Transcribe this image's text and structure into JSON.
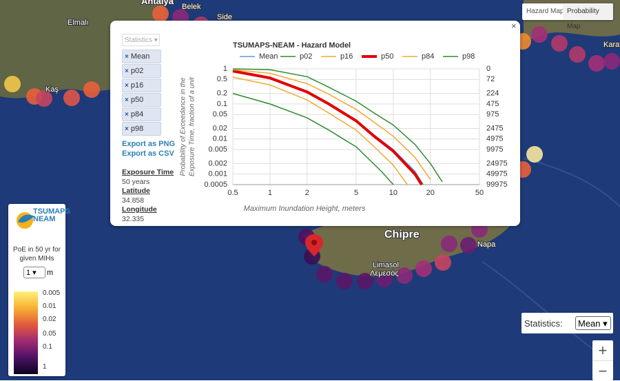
{
  "map": {
    "buttons": [
      "Hazard Map",
      "Probability Map"
    ],
    "labels": [
      "Antalya",
      "Belek",
      "Side",
      "Elmalı",
      "Kaş",
      "Karat",
      "Chipre",
      "Limasol",
      "Λεμεσός",
      "Napa"
    ],
    "statistics_label": "Statistics:",
    "statistics_value": "Mean",
    "zoom_in": "+",
    "zoom_out": "−"
  },
  "legend_panel": {
    "logo": "TSUMAPS NEAM",
    "caption": "PoE in 50 yr for given MIHs",
    "mih_value": "1",
    "mih_unit": "m",
    "scale": [
      "0.005",
      "0.01",
      "0.02",
      "0.05",
      "0.1",
      "1"
    ]
  },
  "popup": {
    "close": "×",
    "select": "Statistics",
    "chips": [
      "Mean",
      "p02",
      "p16",
      "p50",
      "p84",
      "p98"
    ],
    "exports": [
      "Export as PNG",
      "Export as CSV"
    ],
    "info": [
      [
        "Exposure Time",
        "50 years"
      ],
      [
        "Latitude",
        "34.858"
      ],
      [
        "Longitude",
        "32.335"
      ]
    ]
  },
  "chart_data": {
    "type": "line",
    "title": "TSUMAPS-NEAM - Hazard Model",
    "xlabel": "Maximum Inundation Height, meters",
    "ylabel": [
      "Probability of Exceedance in the",
      "Exposure Time, fraction of a unit"
    ],
    "xscale": "log",
    "yscale": "log",
    "grid": true,
    "xlim": [
      0.5,
      50
    ],
    "xticks": [
      0.5,
      1,
      2,
      5,
      10,
      20,
      50
    ],
    "ylim": [
      0.0005,
      1
    ],
    "yticks": [
      1,
      0.5,
      0.2,
      0.1,
      0.05,
      0.02,
      0.01,
      0.005,
      0.002,
      0.001,
      0.0005
    ],
    "y2ticks": [
      0,
      72,
      224,
      475,
      975,
      2475,
      4975,
      9975,
      24975,
      49975,
      99975
    ],
    "series": [
      {
        "name": "Mean",
        "color": "#5b9bd5",
        "linewidth": 1.5,
        "x": [
          0.5,
          1,
          2,
          3,
          5,
          7,
          10,
          15,
          17.5
        ],
        "values": [
          0.85,
          0.54,
          0.22,
          0.1,
          0.034,
          0.013,
          0.005,
          0.0012,
          0.0005
        ]
      },
      {
        "name": "p02",
        "color": "#2e8b2e",
        "linewidth": 1.5,
        "x": [
          0.5,
          1,
          2,
          3,
          5,
          8,
          10
        ],
        "values": [
          0.2,
          0.1,
          0.04,
          0.018,
          0.006,
          0.0012,
          0.0005
        ]
      },
      {
        "name": "p16",
        "color": "#f0a830",
        "linewidth": 1.5,
        "x": [
          0.5,
          1,
          2,
          3,
          5,
          7,
          10,
          13
        ],
        "values": [
          0.58,
          0.35,
          0.13,
          0.055,
          0.018,
          0.006,
          0.0018,
          0.0005
        ]
      },
      {
        "name": "p50",
        "color": "#e00000",
        "linewidth": 4,
        "x": [
          0.5,
          1,
          2,
          3,
          5,
          7,
          10,
          15,
          17
        ],
        "values": [
          0.87,
          0.55,
          0.22,
          0.1,
          0.033,
          0.012,
          0.0045,
          0.001,
          0.0005
        ]
      },
      {
        "name": "p84",
        "color": "#f0a830",
        "linewidth": 1.5,
        "x": [
          0.5,
          1,
          2,
          3,
          5,
          7,
          10,
          15,
          20
        ],
        "values": [
          0.95,
          0.75,
          0.38,
          0.19,
          0.07,
          0.03,
          0.012,
          0.003,
          0.0007
        ]
      },
      {
        "name": "p98",
        "color": "#2e8b2e",
        "linewidth": 1.5,
        "x": [
          0.5,
          1,
          2,
          3,
          5,
          7,
          10,
          15,
          20,
          25
        ],
        "values": [
          1,
          0.95,
          0.6,
          0.3,
          0.12,
          0.055,
          0.025,
          0.007,
          0.002,
          0.0006
        ]
      }
    ]
  }
}
